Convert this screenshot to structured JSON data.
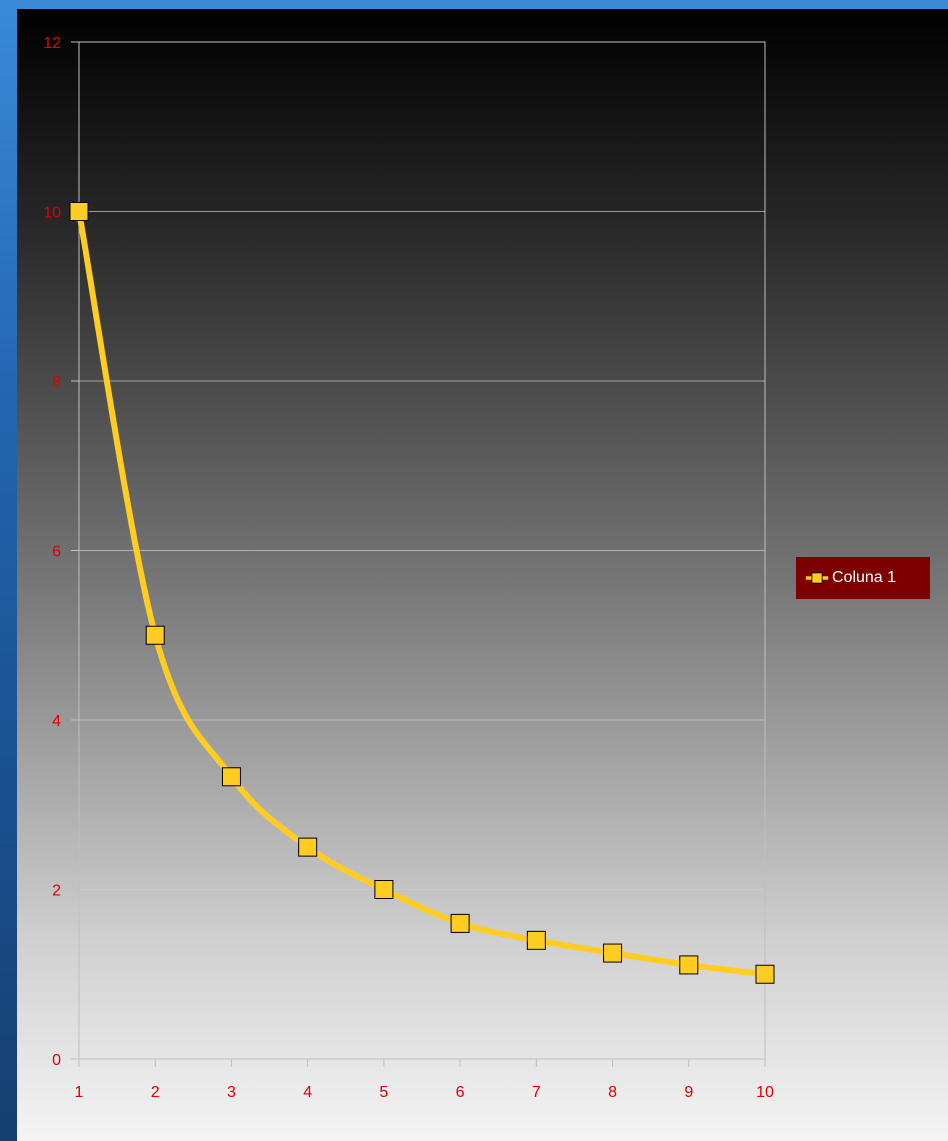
{
  "chart_data": {
    "type": "line",
    "x": [
      1,
      2,
      3,
      4,
      5,
      6,
      7,
      8,
      9,
      10
    ],
    "series": [
      {
        "name": "Coluna 1",
        "values": [
          10,
          5,
          3.33,
          2.5,
          2,
          1.6,
          1.4,
          1.25,
          1.11,
          1
        ],
        "color": "#ffcc22"
      }
    ],
    "xticks": [
      "1",
      "2",
      "3",
      "4",
      "5",
      "6",
      "7",
      "8",
      "9",
      "10"
    ],
    "yticks": [
      "0",
      "2",
      "4",
      "6",
      "8",
      "10",
      "12"
    ],
    "ylim": [
      0,
      12
    ],
    "xlim": [
      1,
      10
    ],
    "grid": true,
    "legend_position": "right"
  },
  "colors": {
    "line": "#ffcc22",
    "tick_text": "#e00000",
    "legend_bg": "#7e0000",
    "grid": "#cccccc"
  }
}
